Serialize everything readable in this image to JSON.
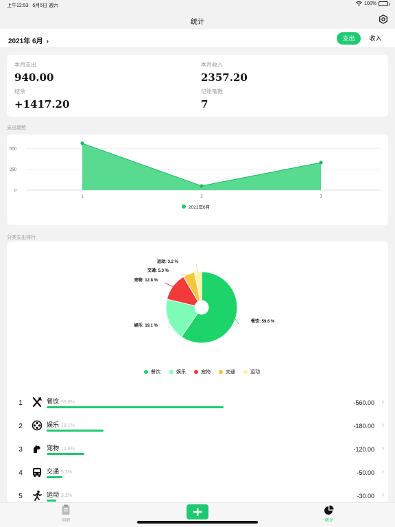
{
  "status_bar": {
    "time": "上午12:53",
    "date": "6月5日 週六",
    "battery": "100%"
  },
  "header": {
    "title": "统计"
  },
  "toolbar": {
    "month": "2021年 6月",
    "month_chevron": "›",
    "segment_active": "支出",
    "segment_inactive": "收入"
  },
  "summary": [
    {
      "label": "本月支出",
      "value": "940.00"
    },
    {
      "label": "本月收入",
      "value": "2357.20"
    },
    {
      "label": "结余",
      "value": "+1417.20"
    },
    {
      "label": "记账笔数",
      "value": "7"
    }
  ],
  "trend": {
    "section_title": "支出趋势",
    "chart_data": {
      "type": "area",
      "x": [
        1,
        2,
        3
      ],
      "series": [
        {
          "name": "2021年6月",
          "values": [
            560,
            50,
            330
          ]
        }
      ],
      "yticks": [
        0,
        250,
        500
      ],
      "xticks": [
        "1",
        "2",
        "3"
      ],
      "ylim": [
        0,
        600
      ],
      "color": "#1ec971",
      "legend_position": "bottom-center"
    }
  },
  "category": {
    "section_title": "分类支出排行",
    "chart_data": {
      "type": "pie",
      "donut": true,
      "slices": [
        {
          "name": "餐饮",
          "value": 59.6,
          "label": "餐饮: 59.6 %",
          "color": "#1dd46a"
        },
        {
          "name": "娱乐",
          "value": 19.1,
          "label": "娱乐: 19.1 %",
          "color": "#7dfdb8"
        },
        {
          "name": "宠物",
          "value": 12.8,
          "label": "宠物: 12.8 %",
          "color": "#f23a3a"
        },
        {
          "name": "交通",
          "value": 5.3,
          "label": "交通: 5.3 %",
          "color": "#f5c63e"
        },
        {
          "name": "运动",
          "value": 3.2,
          "label": "运动: 3.2 %",
          "color": "#fbf3a8"
        }
      ]
    },
    "ranking": [
      {
        "index": "1",
        "name": "餐饮",
        "pct": "59.6%",
        "amount": "-560.00",
        "icon": "utensils-icon",
        "fraction": 0.596
      },
      {
        "index": "2",
        "name": "娱乐",
        "pct": "19.1%",
        "amount": "-180.00",
        "icon": "film-reel-icon",
        "fraction": 0.191
      },
      {
        "index": "3",
        "name": "宠物",
        "pct": "12.8%",
        "amount": "-120.00",
        "icon": "pet-icon",
        "fraction": 0.128
      },
      {
        "index": "4",
        "name": "交通",
        "pct": "5.3%",
        "amount": "-50.00",
        "icon": "bus-icon",
        "fraction": 0.053
      },
      {
        "index": "5",
        "name": "运动",
        "pct": "3.2%",
        "amount": "-30.00",
        "icon": "runner-icon",
        "fraction": 0.032
      }
    ]
  },
  "tabbar": {
    "tab1": "明细",
    "tab3": "统计"
  },
  "colors": {
    "accent": "#1ec971"
  }
}
